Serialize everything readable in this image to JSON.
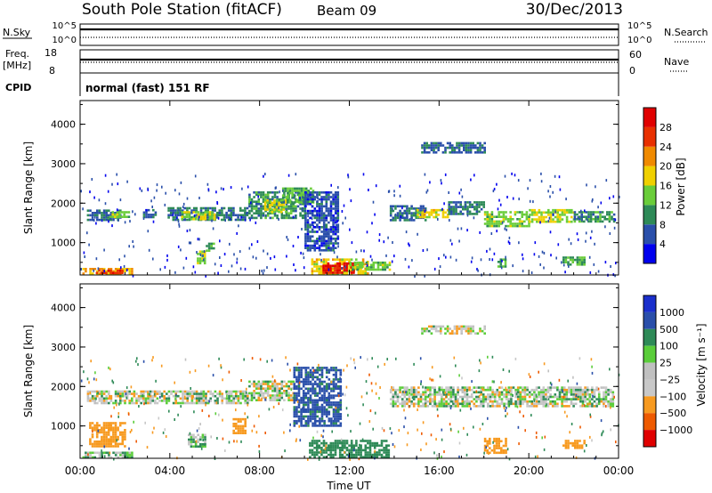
{
  "header": {
    "station": "South Pole Station (fitACF)",
    "beam": "Beam 09",
    "date": "30/Dec/2013"
  },
  "top_panels": {
    "nsky": {
      "label": "N.Sky",
      "ticks": [
        "10^5",
        "10^0"
      ]
    },
    "nsearch": {
      "label": "N.Search",
      "ticks": [
        "10^5",
        "10^0"
      ]
    },
    "freq": {
      "label_line1": "Freq.",
      "label_line2": "[MHz]",
      "ticks": [
        "18",
        "8"
      ]
    },
    "nave": {
      "label": "Nave",
      "ticks": [
        "60",
        "0"
      ]
    },
    "cpid": {
      "label": "CPID",
      "value": "normal (fast) 151 RF"
    }
  },
  "colors": {
    "power": [
      "#0000ee",
      "#2a4faa",
      "#2e8a57",
      "#6acd3a",
      "#f0d000",
      "#f08a00",
      "#e83000",
      "#e00000"
    ],
    "velocity": [
      "#e00000",
      "#ee5a00",
      "#f79a20",
      "#c8c8c8",
      "#c0c0c0",
      "#5acd3a",
      "#2e8a57",
      "#2a4faa",
      "#1a2fcc"
    ]
  },
  "chart_data": [
    {
      "type": "heatmap",
      "name": "Power",
      "xlabel": "",
      "ylabel": "Slant Range [km]",
      "x_ticks": [
        "00:00",
        "04:00",
        "08:00",
        "12:00",
        "16:00",
        "20:00",
        "00:00"
      ],
      "x_range_hours": [
        0,
        24
      ],
      "y_ticks": [
        "1000",
        "2000",
        "3000",
        "4000"
      ],
      "y_range_km": [
        180,
        4600
      ],
      "colorbar": {
        "label": "Power [dB]",
        "ticks": [
          "4",
          "8",
          "12",
          "16",
          "20",
          "24",
          "28"
        ],
        "range": [
          0,
          32
        ]
      },
      "regions": [
        {
          "t0": 0.3,
          "t1": 1.8,
          "r0": 1580,
          "r1": 1840,
          "value": 8
        },
        {
          "t0": 1.3,
          "t1": 2.2,
          "r0": 1650,
          "r1": 1800,
          "value": 14
        },
        {
          "t0": 2.8,
          "t1": 3.4,
          "r0": 1650,
          "r1": 1850,
          "value": 6
        },
        {
          "t0": 3.9,
          "t1": 7.5,
          "r0": 1550,
          "r1": 1900,
          "value": 9
        },
        {
          "t0": 4.5,
          "t1": 6.0,
          "r0": 1620,
          "r1": 1800,
          "value": 16
        },
        {
          "t0": 7.5,
          "t1": 10.0,
          "r0": 1600,
          "r1": 2300,
          "value": 10
        },
        {
          "t0": 8.2,
          "t1": 9.2,
          "r0": 1750,
          "r1": 2100,
          "value": 17
        },
        {
          "t0": 9.0,
          "t1": 10.4,
          "r0": 2000,
          "r1": 2400,
          "value": 13
        },
        {
          "t0": 10.0,
          "t1": 11.5,
          "r0": 800,
          "r1": 2300,
          "value": 6
        },
        {
          "t0": 13.8,
          "t1": 15.4,
          "r0": 1550,
          "r1": 1950,
          "value": 8
        },
        {
          "t0": 15.0,
          "t1": 16.4,
          "r0": 1650,
          "r1": 1850,
          "value": 18
        },
        {
          "t0": 16.4,
          "t1": 18.0,
          "r0": 1700,
          "r1": 2050,
          "value": 9
        },
        {
          "t0": 18.0,
          "t1": 20.0,
          "r0": 1400,
          "r1": 1800,
          "value": 14
        },
        {
          "t0": 20.0,
          "t1": 22.0,
          "r0": 1550,
          "r1": 1850,
          "value": 16
        },
        {
          "t0": 22.0,
          "t1": 23.8,
          "r0": 1550,
          "r1": 1800,
          "value": 10
        },
        {
          "t0": 15.2,
          "t1": 18.0,
          "r0": 3300,
          "r1": 3550,
          "value": 7
        },
        {
          "t0": 10.3,
          "t1": 12.8,
          "r0": 200,
          "r1": 600,
          "value": 18
        },
        {
          "t0": 10.8,
          "t1": 12.2,
          "r0": 250,
          "r1": 500,
          "value": 29
        },
        {
          "t0": 12.0,
          "t1": 13.8,
          "r0": 300,
          "r1": 520,
          "value": 14
        },
        {
          "t0": 0.1,
          "t1": 2.3,
          "r0": 200,
          "r1": 360,
          "value": 21
        },
        {
          "t0": 0.7,
          "t1": 2.0,
          "r0": 210,
          "r1": 320,
          "value": 27
        },
        {
          "t0": 5.2,
          "t1": 5.6,
          "r0": 500,
          "r1": 800,
          "value": 15
        },
        {
          "t0": 5.6,
          "t1": 6.0,
          "r0": 800,
          "r1": 1000,
          "value": 12
        },
        {
          "t0": 21.5,
          "t1": 22.5,
          "r0": 450,
          "r1": 650,
          "value": 12
        },
        {
          "t0": 18.6,
          "t1": 19.0,
          "r0": 400,
          "r1": 600,
          "value": 11
        }
      ]
    },
    {
      "type": "heatmap",
      "name": "Velocity",
      "xlabel": "Time UT",
      "ylabel": "Slant Range [km]",
      "x_ticks": [
        "00:00",
        "04:00",
        "08:00",
        "12:00",
        "16:00",
        "20:00",
        "00:00"
      ],
      "x_range_hours": [
        0,
        24
      ],
      "y_ticks": [
        "1000",
        "2000",
        "3000",
        "4000"
      ],
      "y_range_km": [
        180,
        4600
      ],
      "colorbar": {
        "label": "Velocity [m s⁻¹]",
        "ticks": [
          "1000",
          "500",
          "100",
          "25",
          "−25",
          "−100",
          "−500",
          "−1000"
        ],
        "range": [
          -1200,
          1200
        ]
      },
      "regions": [
        {
          "t0": 0.3,
          "t1": 7.5,
          "r0": 1600,
          "r1": 1900,
          "value": 0
        },
        {
          "t0": 7.5,
          "t1": 9.5,
          "r0": 1650,
          "r1": 2150,
          "value": 0
        },
        {
          "t0": 9.5,
          "t1": 11.6,
          "r0": 1000,
          "r1": 2500,
          "value": 600
        },
        {
          "t0": 13.8,
          "t1": 23.8,
          "r0": 1500,
          "r1": 2000,
          "value": 0
        },
        {
          "t0": 15.2,
          "t1": 18.0,
          "r0": 3350,
          "r1": 3550,
          "value": -40
        },
        {
          "t0": 10.2,
          "t1": 13.8,
          "r0": 200,
          "r1": 650,
          "value": 300
        },
        {
          "t0": 0.1,
          "t1": 2.3,
          "r0": 200,
          "r1": 350,
          "value": 60
        },
        {
          "t0": 21.5,
          "t1": 22.5,
          "r0": 450,
          "r1": 650,
          "value": -300
        },
        {
          "t0": 18.0,
          "t1": 19.0,
          "r0": 300,
          "r1": 700,
          "value": -350
        },
        {
          "t0": 4.8,
          "t1": 5.6,
          "r0": 500,
          "r1": 800,
          "value": 80
        },
        {
          "t0": 6.8,
          "t1": 7.4,
          "r0": 800,
          "r1": 1200,
          "value": -300
        },
        {
          "t0": 0.4,
          "t1": 2.0,
          "r0": 500,
          "r1": 1100,
          "value": -250
        }
      ]
    }
  ]
}
